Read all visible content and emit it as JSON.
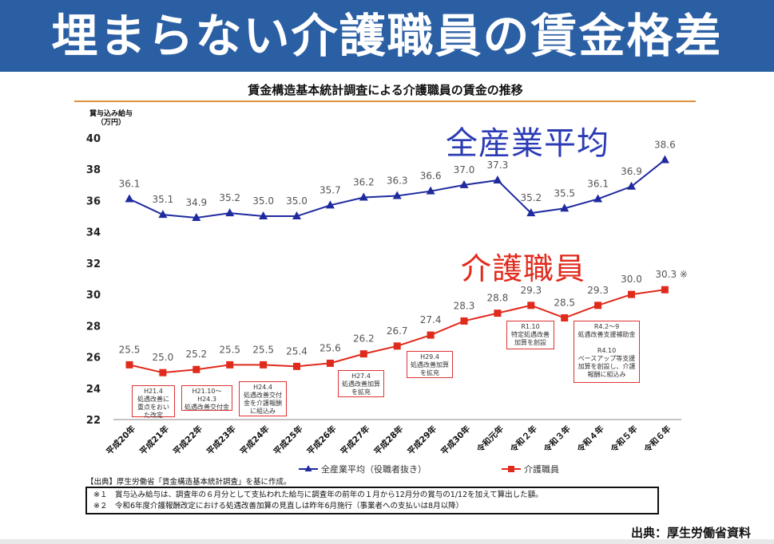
{
  "banner": {
    "title": "埋まらない介護職員の賃金格差"
  },
  "chart_data": {
    "type": "line",
    "title": "賃金構造基本統計調査による介護職員の賃金の推移",
    "ylabel_line1": "賞与込み給与",
    "ylabel_line2": "（万円）",
    "ylim": [
      22,
      40
    ],
    "yticks": [
      22,
      24,
      26,
      28,
      30,
      32,
      34,
      36,
      38,
      40
    ],
    "categories": [
      "平成20年",
      "平成21年",
      "平成22年",
      "平成23年",
      "平成24年",
      "平成25年",
      "平成26年",
      "平成27年",
      "平成28年",
      "平成29年",
      "平成30年",
      "令和元年",
      "令和２年",
      "令和３年",
      "令和４年",
      "令和５年",
      "令和６年"
    ],
    "series": [
      {
        "name": "全産業平均（役職者抜き）",
        "color": "#1f2a9e",
        "marker": "triangle",
        "values": [
          36.1,
          35.1,
          34.9,
          35.2,
          35.0,
          35.0,
          35.7,
          36.2,
          36.3,
          36.6,
          37.0,
          37.3,
          35.2,
          35.5,
          36.1,
          36.9,
          38.6
        ],
        "labels": [
          "36.1",
          "35.1",
          "34.9",
          "35.2",
          "35.0",
          "35.0",
          "35.7",
          "36.2",
          "36.3",
          "36.6",
          "37.0",
          "37.3",
          "35.2",
          "35.5",
          "36.1",
          "36.9",
          "38.6"
        ]
      },
      {
        "name": "介護職員",
        "color": "#e02a1c",
        "marker": "square",
        "values": [
          25.5,
          25.0,
          25.2,
          25.5,
          25.5,
          25.4,
          25.6,
          26.2,
          26.7,
          27.4,
          28.3,
          28.8,
          29.3,
          28.5,
          29.3,
          30.0,
          30.3
        ],
        "labels": [
          "25.5",
          "25.0",
          "25.2",
          "25.5",
          "25.5",
          "25.4",
          "25.6",
          "26.2",
          "26.7",
          "27.4",
          "28.3",
          "28.8",
          "29.3",
          "28.5",
          "29.3",
          "30.0",
          "30.3 ※"
        ]
      }
    ],
    "series_titles": {
      "all_industry": "全産業平均",
      "care_workers": "介護職員"
    },
    "annotations": [
      {
        "text": "H21.4\n処遇改善に\n重点をおい\nた改定"
      },
      {
        "text": "H21.10～\nH24.3\n処遇改善交付金"
      },
      {
        "text": "H24.4\n処遇改善交付\n金を介護報酬\nに組込み"
      },
      {
        "text": "H27.4\n処遇改善加算\nを拡充"
      },
      {
        "text": "H29.4\n処遇改善加算\nを拡充"
      },
      {
        "text": "R1.10\n特定処遇改善\n加算を創設"
      },
      {
        "text": "R4.2～9\n処遇改善支援補助金\n\nR4.10\nベースアップ等支援\n加算を創設し、介護\n報酬に組込み"
      }
    ]
  },
  "footer": {
    "source": "【出典】厚生労働省「賃金構造基本統計調査」を基に作成。",
    "note1": "※１　賞与込み給与は、調査年の６月分として支払われた給与に調査年の前年の１月から12月分の賞与の1/12を加えて算出した額。",
    "note2": "※２　令和6年度介護報酬改定における処遇改善加算の見直しは昨年6月施行（事業者への支払いは8月以降）",
    "credit": "出典：厚生労働省資料"
  }
}
